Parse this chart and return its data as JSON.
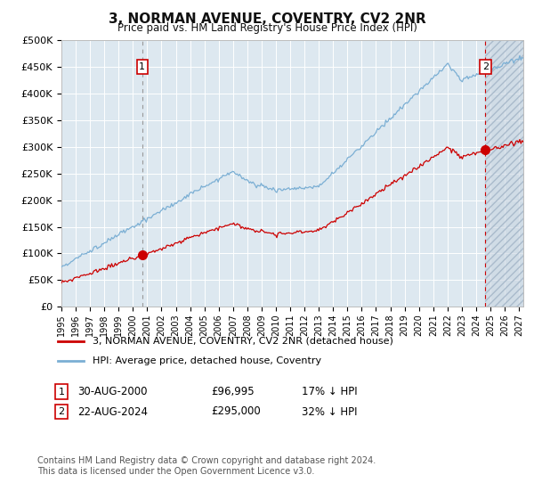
{
  "title": "3, NORMAN AVENUE, COVENTRY, CV2 2NR",
  "subtitle": "Price paid vs. HM Land Registry's House Price Index (HPI)",
  "legend_line1": "3, NORMAN AVENUE, COVENTRY, CV2 2NR (detached house)",
  "legend_line2": "HPI: Average price, detached house, Coventry",
  "annotation1_date": "30-AUG-2000",
  "annotation1_price": "£96,995",
  "annotation1_hpi": "17% ↓ HPI",
  "annotation1_year": 2000.65,
  "annotation1_value": 96995,
  "annotation2_date": "22-AUG-2024",
  "annotation2_price": "£295,000",
  "annotation2_hpi": "32% ↓ HPI",
  "annotation2_year": 2024.64,
  "annotation2_value": 295000,
  "ylim": [
    0,
    500000
  ],
  "yticks": [
    0,
    50000,
    100000,
    150000,
    200000,
    250000,
    300000,
    350000,
    400000,
    450000,
    500000
  ],
  "future_start_year": 2024.64,
  "future_end_year": 2027.3,
  "background_color": "#dde8f0",
  "fig_background": "#ffffff",
  "red_line_color": "#cc0000",
  "blue_line_color": "#7bafd4",
  "grid_color": "#ffffff",
  "footer_text": "Contains HM Land Registry data © Crown copyright and database right 2024.\nThis data is licensed under the Open Government Licence v3.0.",
  "xlim_start": 1995,
  "xlim_end": 2027.3
}
